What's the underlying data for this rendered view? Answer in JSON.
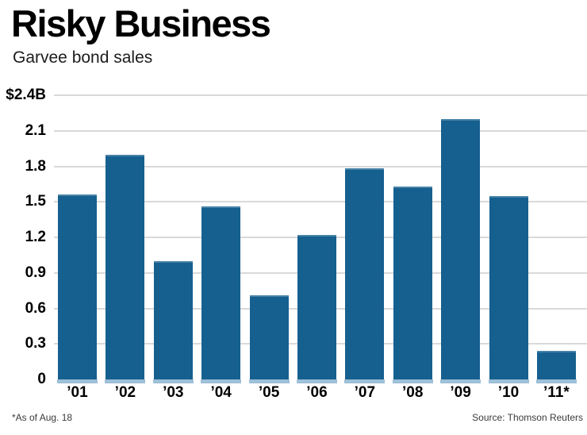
{
  "header": {
    "title": "Risky Business",
    "subtitle": "Garvee bond sales"
  },
  "footer": {
    "note": "*As of Aug. 18",
    "source": "Source: Thomson Reuters"
  },
  "colors": {
    "bar": "#15608F",
    "bar_base": "#9EC0D8",
    "gridline": "#D9D9D9"
  },
  "chart_data": {
    "type": "bar",
    "title": "Risky Business",
    "subtitle": "Garvee bond sales",
    "categories": [
      "’01",
      "’02",
      "’03",
      "’04",
      "’05",
      "’06",
      "’07",
      "’08",
      "’09",
      "’10",
      "’11*"
    ],
    "values": [
      1.56,
      1.9,
      1.0,
      1.46,
      0.71,
      1.22,
      1.78,
      1.63,
      2.2,
      1.55,
      0.24
    ],
    "xlabel": "",
    "ylabel": "Garvee bond sales ($B)",
    "ylim": [
      0,
      2.4
    ],
    "yticks": [
      {
        "label": "$2.4B",
        "value": 2.4
      },
      {
        "label": "2.1",
        "value": 2.1
      },
      {
        "label": "1.8",
        "value": 1.8
      },
      {
        "label": "1.5",
        "value": 1.5
      },
      {
        "label": "1.2",
        "value": 1.2
      },
      {
        "label": "0.9",
        "value": 0.9
      },
      {
        "label": "0.6",
        "value": 0.6
      },
      {
        "label": "0.3",
        "value": 0.3
      },
      {
        "label": "0",
        "value": 0
      }
    ],
    "grid": "horizontal",
    "legend": "none",
    "bar_color": "#15608F",
    "footnote": "*As of Aug. 18",
    "source": "Source: Thomson Reuters"
  }
}
